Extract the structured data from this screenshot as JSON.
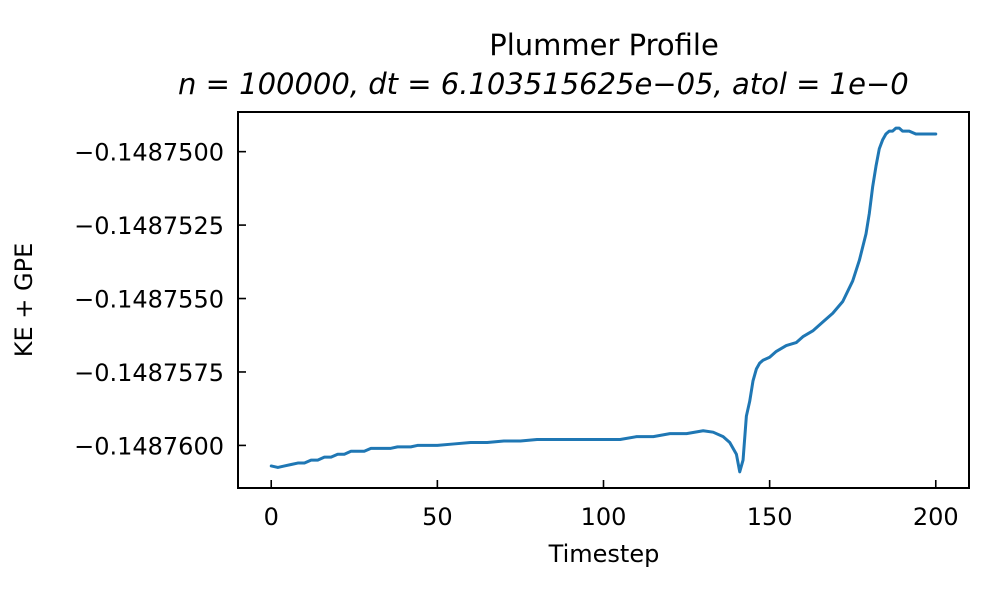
{
  "chart_data": {
    "type": "line",
    "title": "Plummer Profile",
    "subtitle": "n = 100000, dt = 6.103515625e−05, atol = 1e−0",
    "xlabel": "Timestep",
    "ylabel": "KE + GPE",
    "xlim": [
      -10,
      210
    ],
    "ylim": [
      -0.14876145,
      -0.14874865
    ],
    "xticks": [
      0,
      50,
      100,
      150,
      200
    ],
    "yticks": [
      -0.14876,
      -0.1487575,
      -0.148755,
      -0.1487525,
      -0.14875
    ],
    "ytick_labels": [
      "−0.1487600",
      "−0.1487575",
      "−0.1487550",
      "−0.1487525",
      "−0.1487500"
    ],
    "grid": false,
    "series": [
      {
        "color": "#1f77b4",
        "x": [
          0,
          2,
          4,
          6,
          8,
          10,
          12,
          14,
          16,
          18,
          20,
          22,
          24,
          26,
          28,
          30,
          32,
          34,
          36,
          38,
          40,
          42,
          44,
          46,
          48,
          50,
          55,
          60,
          65,
          70,
          75,
          80,
          85,
          90,
          95,
          100,
          105,
          110,
          115,
          120,
          125,
          130,
          133,
          136,
          138,
          140,
          141,
          142,
          143,
          144,
          145,
          146,
          147,
          148,
          150,
          152,
          155,
          158,
          160,
          163,
          166,
          169,
          172,
          175,
          177,
          179,
          180,
          181,
          182,
          183,
          184,
          185,
          186,
          187,
          188,
          189,
          190,
          192,
          194,
          196,
          198,
          200
        ],
        "y": [
          -0.1487607,
          -0.14876075,
          -0.1487607,
          -0.14876065,
          -0.1487606,
          -0.1487606,
          -0.1487605,
          -0.1487605,
          -0.1487604,
          -0.1487604,
          -0.1487603,
          -0.1487603,
          -0.1487602,
          -0.1487602,
          -0.1487602,
          -0.1487601,
          -0.1487601,
          -0.1487601,
          -0.1487601,
          -0.14876005,
          -0.14876005,
          -0.14876005,
          -0.14876,
          -0.14876,
          -0.14876,
          -0.14876,
          -0.14875995,
          -0.1487599,
          -0.1487599,
          -0.14875985,
          -0.14875985,
          -0.1487598,
          -0.1487598,
          -0.1487598,
          -0.1487598,
          -0.1487598,
          -0.1487598,
          -0.1487597,
          -0.1487597,
          -0.1487596,
          -0.1487596,
          -0.1487595,
          -0.14875955,
          -0.1487597,
          -0.1487599,
          -0.1487603,
          -0.1487609,
          -0.1487605,
          -0.148759,
          -0.1487585,
          -0.1487578,
          -0.1487574,
          -0.1487572,
          -0.1487571,
          -0.148757,
          -0.1487568,
          -0.1487566,
          -0.1487565,
          -0.1487563,
          -0.1487561,
          -0.1487558,
          -0.1487555,
          -0.1487551,
          -0.1487544,
          -0.1487537,
          -0.1487528,
          -0.1487521,
          -0.1487512,
          -0.1487505,
          -0.1487499,
          -0.1487496,
          -0.1487494,
          -0.1487493,
          -0.1487493,
          -0.1487492,
          -0.1487492,
          -0.1487493,
          -0.1487493,
          -0.1487494,
          -0.1487494,
          -0.1487494,
          -0.1487494
        ]
      }
    ]
  }
}
